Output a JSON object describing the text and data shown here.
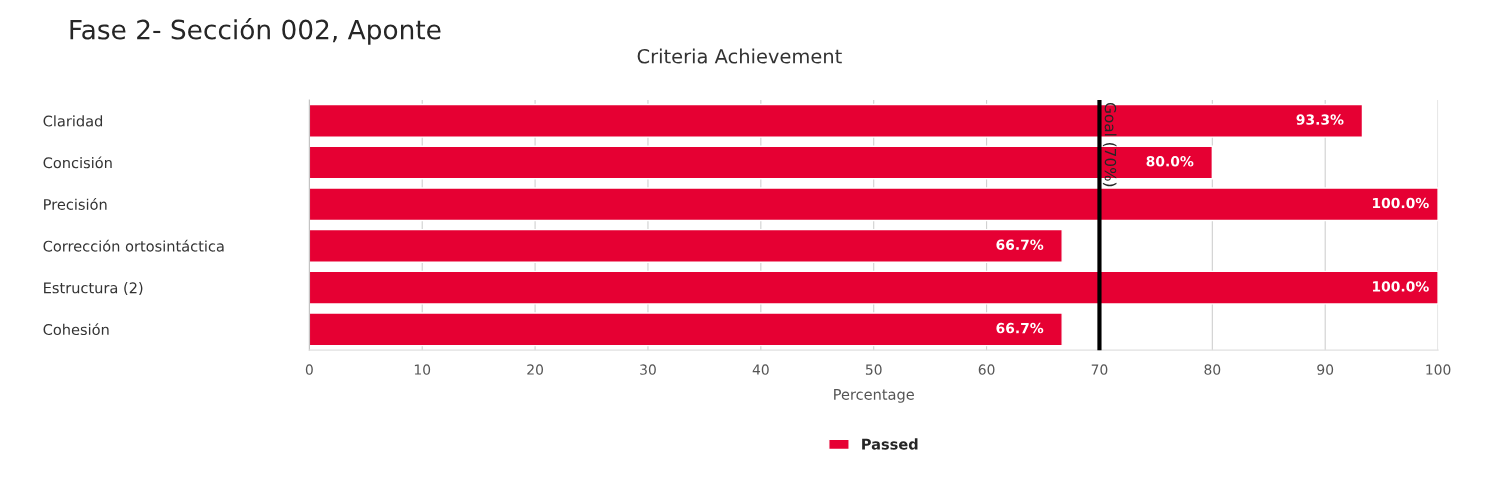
{
  "chart_data": {
    "type": "bar",
    "orientation": "horizontal",
    "title": "Fase 2- Sección 002, Aponte",
    "subtitle": "Criteria Achievement",
    "xlabel": "Percentage",
    "categories": [
      "Claridad",
      "Concisión",
      "Precisión",
      "Corrección ortosintáctica",
      "Estructura (2)",
      "Cohesión"
    ],
    "series": [
      {
        "name": "Passed",
        "color": "#e60033",
        "values": [
          93.3,
          80.0,
          100.0,
          66.7,
          100.0,
          66.7
        ],
        "value_labels": [
          "93.3%",
          "80.0%",
          "100.0%",
          "66.7%",
          "100.0%",
          "66.7%"
        ]
      }
    ],
    "xlim": [
      0,
      100
    ],
    "xticks": [
      0,
      10,
      20,
      30,
      40,
      50,
      60,
      70,
      80,
      90,
      100
    ],
    "ref_lines": [
      {
        "axis": "x",
        "value": 70,
        "label": "Goal (70%)",
        "color": "#000000"
      }
    ],
    "grid": "x",
    "legend": "bottom"
  }
}
